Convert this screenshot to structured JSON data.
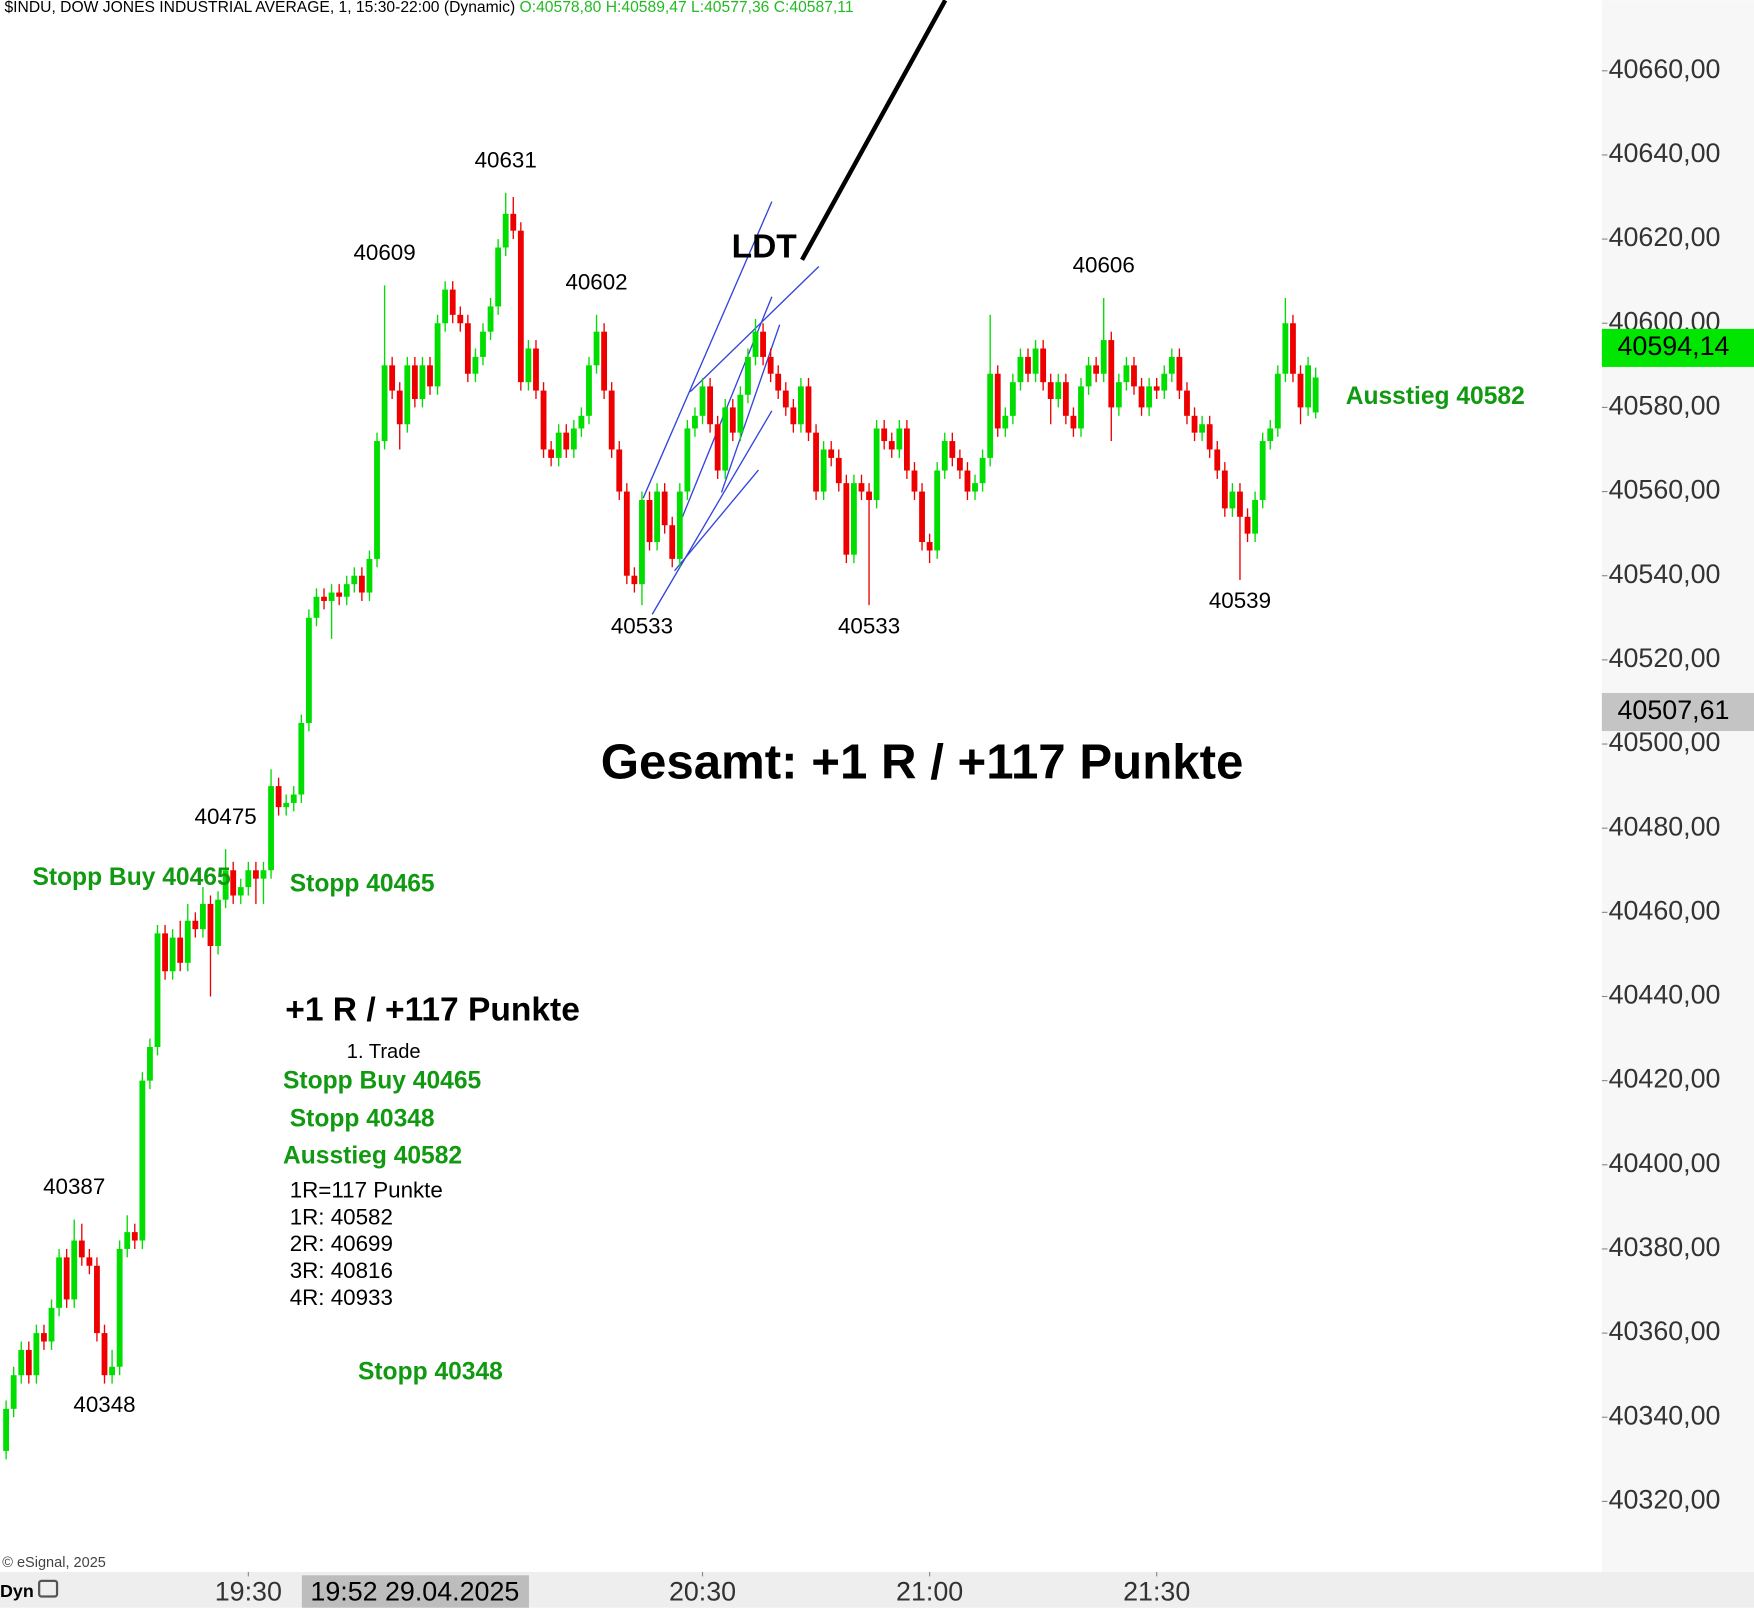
{
  "chart_data": {
    "type": "candlestick",
    "title": "$INDU, DOW JONES INDUSTRIAL AVERAGE, 1, 15:30-22:00 (Dynamic)",
    "ohlc_text": "O:40578,80 H:40589,47 L:40577,36 C:40587,11",
    "x": [
      "18:58",
      "18:59",
      "19:00",
      "19:01",
      "19:02",
      "19:03",
      "19:04",
      "19:05",
      "19:06",
      "19:07",
      "19:08",
      "19:09",
      "19:10",
      "19:11",
      "19:12",
      "19:13",
      "19:14",
      "19:15",
      "19:16",
      "19:17",
      "19:18",
      "19:19",
      "19:20",
      "19:21",
      "19:22",
      "19:23",
      "19:24",
      "19:25",
      "19:26",
      "19:27",
      "19:28",
      "19:29",
      "19:30",
      "19:31",
      "19:32",
      "19:33",
      "19:34",
      "19:35",
      "19:36",
      "19:37",
      "19:38",
      "19:39",
      "19:40",
      "19:41",
      "19:42",
      "19:43",
      "19:44",
      "19:45",
      "19:46",
      "19:47",
      "19:48",
      "19:49",
      "19:50",
      "19:51",
      "19:52",
      "19:53",
      "19:54",
      "19:55",
      "19:56",
      "19:57",
      "19:58",
      "19:59",
      "20:00",
      "20:01",
      "20:02",
      "20:03",
      "20:04",
      "20:05",
      "20:06",
      "20:07",
      "20:08",
      "20:09",
      "20:10",
      "20:11",
      "20:12",
      "20:13",
      "20:14",
      "20:15",
      "20:16",
      "20:17",
      "20:18",
      "20:19",
      "20:20",
      "20:21",
      "20:22",
      "20:23",
      "20:24",
      "20:25",
      "20:26",
      "20:27",
      "20:28",
      "20:29",
      "20:30",
      "20:31",
      "20:32",
      "20:33",
      "20:34",
      "20:35",
      "20:36",
      "20:37",
      "20:38",
      "20:39",
      "20:40",
      "20:41",
      "20:42",
      "20:43",
      "20:44",
      "20:45",
      "20:46",
      "20:47",
      "20:48",
      "20:49",
      "20:50",
      "20:51",
      "20:52",
      "20:53",
      "20:54",
      "20:55",
      "20:56",
      "20:57",
      "20:58",
      "20:59",
      "21:00",
      "21:01",
      "21:02",
      "21:03",
      "21:04",
      "21:05",
      "21:06",
      "21:07",
      "21:08",
      "21:09",
      "21:10",
      "21:11",
      "21:12",
      "21:13",
      "21:14",
      "21:15",
      "21:16",
      "21:17",
      "21:18",
      "21:19",
      "21:20",
      "21:21",
      "21:22",
      "21:23",
      "21:24",
      "21:25",
      "21:26",
      "21:27",
      "21:28",
      "21:29",
      "21:30",
      "21:31",
      "21:32",
      "21:33",
      "21:34",
      "21:35",
      "21:36",
      "21:37",
      "21:38",
      "21:39",
      "21:40",
      "21:41",
      "21:42",
      "21:43",
      "21:44",
      "21:45",
      "21:46",
      "21:47",
      "21:48",
      "21:49",
      "21:50",
      "21:51"
    ],
    "ohlc": [
      [
        40332,
        40344,
        40330,
        40342
      ],
      [
        40342,
        40352,
        40340,
        40350
      ],
      [
        40350,
        40358,
        40348,
        40356
      ],
      [
        40356,
        40358,
        40348,
        40350
      ],
      [
        40350,
        40362,
        40348,
        40360
      ],
      [
        40360,
        40362,
        40356,
        40358
      ],
      [
        40358,
        40368,
        40356,
        40366
      ],
      [
        40366,
        40380,
        40364,
        40378
      ],
      [
        40378,
        40380,
        40366,
        40368
      ],
      [
        40368,
        40387,
        40366,
        40382
      ],
      [
        40382,
        40386,
        40376,
        40378
      ],
      [
        40378,
        40380,
        40374,
        40376
      ],
      [
        40376,
        40378,
        40358,
        40360
      ],
      [
        40360,
        40362,
        40348,
        40350
      ],
      [
        40350,
        40356,
        40348,
        40352
      ],
      [
        40352,
        40382,
        40350,
        40380
      ],
      [
        40380,
        40388,
        40378,
        40384
      ],
      [
        40384,
        40386,
        40380,
        40382
      ],
      [
        40382,
        40422,
        40380,
        40420
      ],
      [
        40420,
        40430,
        40418,
        40428
      ],
      [
        40428,
        40457,
        40426,
        40455
      ],
      [
        40455,
        40457,
        40444,
        40446
      ],
      [
        40446,
        40456,
        40444,
        40454
      ],
      [
        40454,
        40458,
        40446,
        40448
      ],
      [
        40448,
        40462,
        40446,
        40458
      ],
      [
        40458,
        40460,
        40454,
        40456
      ],
      [
        40456,
        40466,
        40454,
        40462
      ],
      [
        40462,
        40464,
        40440,
        40452
      ],
      [
        40452,
        40465,
        40450,
        40463
      ],
      [
        40463,
        40475,
        40461,
        40470
      ],
      [
        40470,
        40472,
        40462,
        40464
      ],
      [
        40464,
        40468,
        40462,
        40466
      ],
      [
        40466,
        40472,
        40464,
        40470
      ],
      [
        40470,
        40472,
        40462,
        40468
      ],
      [
        40468,
        40472,
        40462,
        40470
      ],
      [
        40470,
        40494,
        40468,
        40490
      ],
      [
        40490,
        40492,
        40483,
        40485
      ],
      [
        40485,
        40488,
        40483,
        40486
      ],
      [
        40486,
        40490,
        40484,
        40488
      ],
      [
        40488,
        40507,
        40486,
        40505
      ],
      [
        40505,
        40532,
        40503,
        40530
      ],
      [
        40530,
        40537,
        40528,
        40535
      ],
      [
        40535,
        40537,
        40532,
        40534
      ],
      [
        40534,
        40538,
        40525,
        40536
      ],
      [
        40536,
        40538,
        40533,
        40535
      ],
      [
        40535,
        40540,
        40533,
        40538
      ],
      [
        40538,
        40542,
        40536,
        40540
      ],
      [
        40540,
        40542,
        40534,
        40536
      ],
      [
        40536,
        40546,
        40534,
        40544
      ],
      [
        40544,
        40574,
        40542,
        40572
      ],
      [
        40572,
        40609,
        40570,
        40590
      ],
      [
        40590,
        40592,
        40582,
        40584
      ],
      [
        40584,
        40586,
        40570,
        40576
      ],
      [
        40576,
        40592,
        40574,
        40590
      ],
      [
        40590,
        40592,
        40580,
        40582
      ],
      [
        40582,
        40592,
        40580,
        40590
      ],
      [
        40590,
        40592,
        40583,
        40585
      ],
      [
        40585,
        40602,
        40583,
        40600
      ],
      [
        40600,
        40610,
        40598,
        40608
      ],
      [
        40608,
        40610,
        40600,
        40602
      ],
      [
        40602,
        40604,
        40598,
        40600
      ],
      [
        40600,
        40602,
        40586,
        40588
      ],
      [
        40588,
        40594,
        40586,
        40592
      ],
      [
        40592,
        40600,
        40590,
        40598
      ],
      [
        40598,
        40606,
        40596,
        40604
      ],
      [
        40604,
        40620,
        40602,
        40618
      ],
      [
        40618,
        40631,
        40616,
        40626
      ],
      [
        40626,
        40630,
        40620,
        40622
      ],
      [
        40622,
        40624,
        40584,
        40586
      ],
      [
        40586,
        40596,
        40584,
        40594
      ],
      [
        40594,
        40596,
        40582,
        40584
      ],
      [
        40584,
        40586,
        40568,
        40570
      ],
      [
        40570,
        40572,
        40566,
        40568
      ],
      [
        40568,
        40576,
        40566,
        40574
      ],
      [
        40574,
        40576,
        40568,
        40570
      ],
      [
        40570,
        40577,
        40568,
        40575
      ],
      [
        40575,
        40580,
        40573,
        40578
      ],
      [
        40578,
        40592,
        40576,
        40590
      ],
      [
        40590,
        40602,
        40588,
        40598
      ],
      [
        40598,
        40600,
        40582,
        40584
      ],
      [
        40584,
        40586,
        40568,
        40570
      ],
      [
        40570,
        40572,
        40558,
        40560
      ],
      [
        40560,
        40562,
        40538,
        40540
      ],
      [
        40540,
        40542,
        40536,
        40538
      ],
      [
        40538,
        40560,
        40533,
        40558
      ],
      [
        40558,
        40560,
        40546,
        40548
      ],
      [
        40548,
        40562,
        40546,
        40560
      ],
      [
        40560,
        40562,
        40550,
        40552
      ],
      [
        40552,
        40554,
        40542,
        40544
      ],
      [
        40544,
        40562,
        40542,
        40560
      ],
      [
        40560,
        40577,
        40558,
        40575
      ],
      [
        40575,
        40580,
        40573,
        40578
      ],
      [
        40578,
        40587,
        40576,
        40585
      ],
      [
        40585,
        40587,
        40574,
        40576
      ],
      [
        40576,
        40578,
        40563,
        40565
      ],
      [
        40565,
        40582,
        40563,
        40580
      ],
      [
        40580,
        40582,
        40572,
        40574
      ],
      [
        40574,
        40585,
        40572,
        40583
      ],
      [
        40583,
        40594,
        40581,
        40592
      ],
      [
        40592,
        40601,
        40590,
        40598
      ],
      [
        40598,
        40600,
        40590,
        40592
      ],
      [
        40592,
        40594,
        40586,
        40588
      ],
      [
        40588,
        40590,
        40582,
        40584
      ],
      [
        40584,
        40586,
        40578,
        40580
      ],
      [
        40580,
        40582,
        40574,
        40576
      ],
      [
        40576,
        40587,
        40574,
        40585
      ],
      [
        40585,
        40587,
        40572,
        40574
      ],
      [
        40574,
        40576,
        40558,
        40560
      ],
      [
        40560,
        40572,
        40558,
        40570
      ],
      [
        40570,
        40572,
        40566,
        40568
      ],
      [
        40568,
        40570,
        40560,
        40562
      ],
      [
        40562,
        40564,
        40543,
        40545
      ],
      [
        40545,
        40564,
        40543,
        40562
      ],
      [
        40562,
        40564,
        40558,
        40560
      ],
      [
        40560,
        40562,
        40533,
        40558
      ],
      [
        40558,
        40577,
        40556,
        40575
      ],
      [
        40575,
        40577,
        40570,
        40572
      ],
      [
        40572,
        40574,
        40568,
        40570
      ],
      [
        40570,
        40577,
        40568,
        40575
      ],
      [
        40575,
        40577,
        40563,
        40565
      ],
      [
        40565,
        40567,
        40558,
        40560
      ],
      [
        40560,
        40562,
        40546,
        40548
      ],
      [
        40548,
        40550,
        40543,
        40546
      ],
      [
        40546,
        40567,
        40544,
        40565
      ],
      [
        40565,
        40574,
        40563,
        40572
      ],
      [
        40572,
        40574,
        40566,
        40568
      ],
      [
        40568,
        40570,
        40563,
        40565
      ],
      [
        40565,
        40567,
        40558,
        40560
      ],
      [
        40560,
        40564,
        40558,
        40562
      ],
      [
        40562,
        40570,
        40560,
        40568
      ],
      [
        40568,
        40602,
        40566,
        40588
      ],
      [
        40588,
        40590,
        40573,
        40575
      ],
      [
        40575,
        40580,
        40573,
        40578
      ],
      [
        40578,
        40588,
        40576,
        40586
      ],
      [
        40586,
        40594,
        40584,
        40592
      ],
      [
        40592,
        40594,
        40586,
        40588
      ],
      [
        40588,
        40596,
        40586,
        40594
      ],
      [
        40594,
        40596,
        40584,
        40586
      ],
      [
        40586,
        40588,
        40576,
        40582
      ],
      [
        40582,
        40588,
        40580,
        40586
      ],
      [
        40586,
        40588,
        40576,
        40578
      ],
      [
        40578,
        40580,
        40573,
        40575
      ],
      [
        40575,
        40587,
        40573,
        40585
      ],
      [
        40585,
        40592,
        40583,
        40590
      ],
      [
        40590,
        40592,
        40586,
        40588
      ],
      [
        40588,
        40606,
        40586,
        40596
      ],
      [
        40596,
        40598,
        40572,
        40580
      ],
      [
        40580,
        40588,
        40578,
        40586
      ],
      [
        40586,
        40592,
        40584,
        40590
      ],
      [
        40590,
        40592,
        40583,
        40585
      ],
      [
        40585,
        40587,
        40578,
        40580
      ],
      [
        40580,
        40587,
        40578,
        40585
      ],
      [
        40585,
        40587,
        40582,
        40584
      ],
      [
        40584,
        40590,
        40582,
        40588
      ],
      [
        40588,
        40594,
        40586,
        40592
      ],
      [
        40592,
        40594,
        40582,
        40584
      ],
      [
        40584,
        40586,
        40576,
        40578
      ],
      [
        40578,
        40580,
        40572,
        40574
      ],
      [
        40574,
        40578,
        40572,
        40576
      ],
      [
        40576,
        40578,
        40568,
        40570
      ],
      [
        40570,
        40572,
        40563,
        40565
      ],
      [
        40565,
        40567,
        40554,
        40556
      ],
      [
        40556,
        40562,
        40554,
        40560
      ],
      [
        40560,
        40562,
        40539,
        40554
      ],
      [
        40554,
        40556,
        40548,
        40550
      ],
      [
        40550,
        40560,
        40548,
        40558
      ],
      [
        40558,
        40574,
        40556,
        40572
      ],
      [
        40572,
        40577,
        40570,
        40575
      ],
      [
        40575,
        40590,
        40573,
        40588
      ],
      [
        40588,
        40606,
        40586,
        40600
      ],
      [
        40600,
        40602,
        40586,
        40588
      ],
      [
        40588,
        40590,
        40576,
        40580
      ],
      [
        40580,
        40592,
        40578,
        40590
      ],
      [
        40578.8,
        40589.47,
        40577.36,
        40587.11
      ]
    ],
    "up_color": "#00dd00",
    "down_color": "#ee0000",
    "ylim": [
      40303.24,
      40676.76
    ],
    "yticks": [
      {
        "value": 40320,
        "label": "40320,00"
      },
      {
        "value": 40340,
        "label": "40340,00"
      },
      {
        "value": 40360,
        "label": "40360,00"
      },
      {
        "value": 40380,
        "label": "40380,00"
      },
      {
        "value": 40400,
        "label": "40400,00"
      },
      {
        "value": 40420,
        "label": "40420,00"
      },
      {
        "value": 40440,
        "label": "40440,00"
      },
      {
        "value": 40460,
        "label": "40460,00"
      },
      {
        "value": 40480,
        "label": "40480,00"
      },
      {
        "value": 40500,
        "label": "40500,00"
      },
      {
        "value": 40520,
        "label": "40520,00"
      },
      {
        "value": 40540,
        "label": "40540,00"
      },
      {
        "value": 40560,
        "label": "40560,00"
      },
      {
        "value": 40580,
        "label": "40580,00"
      },
      {
        "value": 40600,
        "label": "40600,00"
      },
      {
        "value": 40620,
        "label": "40620,00"
      },
      {
        "value": 40640,
        "label": "40640,00"
      },
      {
        "value": 40660,
        "label": "40660,00"
      }
    ],
    "xticks": [
      "19:30",
      "20:30",
      "21:00",
      "21:30"
    ],
    "crosshair": {
      "x": "19:52",
      "label": "19:52 29.04.2025"
    },
    "price_labels": [
      {
        "value": 40594.14,
        "label": "40594,14",
        "color": "#00e600"
      },
      {
        "value": 40507.61,
        "label": "40507,61",
        "color": "#c4c4c4"
      }
    ],
    "swing_labels": [
      {
        "x": "20:04",
        "value": 40631
      },
      {
        "x": "19:48",
        "value": 40609
      },
      {
        "x": "20:16",
        "value": 40602
      },
      {
        "x": "21:23",
        "value": 40606
      },
      {
        "x": "20:22",
        "value": 40533
      },
      {
        "x": "20:52",
        "value": 40533
      },
      {
        "x": "21:41",
        "value": 40539
      },
      {
        "x": "19:27",
        "value": 40475
      },
      {
        "x": "19:07",
        "value": 40387
      },
      {
        "x": "19:11",
        "value": 40348
      }
    ],
    "notes": [
      "Stopp Buy 40465",
      "Stopp 40465",
      "Ausstieg 40582",
      "+1 R / +117 Punkte",
      "1. Trade",
      "Stopp Buy 40465",
      "Stopp 40348",
      "Ausstieg 40582",
      "1R=117 Punkte",
      "1R: 40582",
      "2R: 40699",
      "3R: 40816",
      "4R: 40933",
      "Stopp 40348",
      "Gesamt: +1 R / +117 Punkte",
      "LDT"
    ],
    "copyright": "© eSignal, 2025",
    "mode": "Dyn"
  }
}
